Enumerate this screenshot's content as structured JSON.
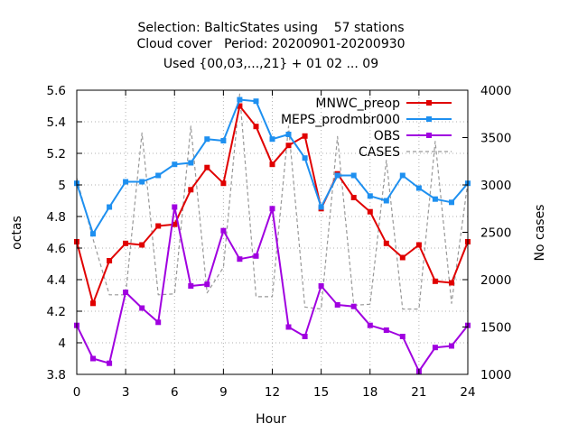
{
  "chart_data": {
    "type": "line",
    "title_lines": [
      "Selection: BalticStates using    57 stations",
      "Cloud cover   Period: 20200901-20200930",
      "Used {00,03,...,21} + 01 02 ... 09"
    ],
    "xlabel": "Hour",
    "ylabel": "octas",
    "y2label": "No cases",
    "x": [
      0,
      1,
      2,
      3,
      4,
      5,
      6,
      7,
      8,
      9,
      10,
      11,
      12,
      13,
      14,
      15,
      16,
      17,
      18,
      19,
      20,
      21,
      22,
      23,
      24
    ],
    "xlim": [
      0,
      24
    ],
    "ylim": [
      3.8,
      5.6
    ],
    "y2lim": [
      1000,
      4000
    ],
    "x_ticks": [
      "0",
      "3",
      "6",
      "9",
      "12",
      "15",
      "18",
      "21",
      "24"
    ],
    "y_ticks": [
      "3.8",
      "4",
      "4.2",
      "4.4",
      "4.6",
      "4.8",
      "5",
      "5.2",
      "5.4",
      "5.6"
    ],
    "y2_ticks": [
      "1000",
      "1500",
      "2000",
      "2500",
      "3000",
      "3500",
      "4000"
    ],
    "grid": true,
    "legend_position": "top-right",
    "series": [
      {
        "name": "MNWC_preop",
        "color": "#e00000",
        "axis": "y",
        "values": [
          4.64,
          4.25,
          4.52,
          4.63,
          4.62,
          4.74,
          4.75,
          4.97,
          5.11,
          5.01,
          5.5,
          5.37,
          5.13,
          5.25,
          5.31,
          4.85,
          5.07,
          4.92,
          4.83,
          4.63,
          4.54,
          4.62,
          4.39,
          4.38,
          4.64
        ]
      },
      {
        "name": "MEPS_prodmbr000",
        "color": "#1e90f0",
        "axis": "y",
        "values": [
          5.01,
          4.69,
          4.86,
          5.02,
          5.02,
          5.06,
          5.13,
          5.14,
          5.29,
          5.28,
          5.54,
          5.53,
          5.29,
          5.32,
          5.17,
          4.86,
          5.06,
          5.06,
          4.93,
          4.9,
          5.06,
          4.98,
          4.91,
          4.89,
          5.01
        ]
      },
      {
        "name": "OBS",
        "color": "#a000e0",
        "axis": "y",
        "values": [
          4.11,
          3.9,
          3.87,
          4.32,
          4.22,
          4.13,
          4.86,
          4.36,
          4.37,
          4.71,
          4.53,
          4.55,
          4.85,
          4.1,
          4.04,
          4.36,
          4.24,
          4.23,
          4.11,
          4.08,
          4.04,
          3.82,
          3.97,
          3.98,
          4.11
        ]
      },
      {
        "name": "CASES",
        "color": "#999999",
        "axis": "y2",
        "dash": true,
        "values": [
          3070,
          2430,
          1840,
          1840,
          3550,
          1840,
          1850,
          3620,
          1860,
          2130,
          3960,
          1820,
          1820,
          3620,
          1710,
          1690,
          3510,
          1730,
          1740,
          3260,
          1690,
          1690,
          3460,
          1750,
          3030
        ]
      }
    ]
  }
}
